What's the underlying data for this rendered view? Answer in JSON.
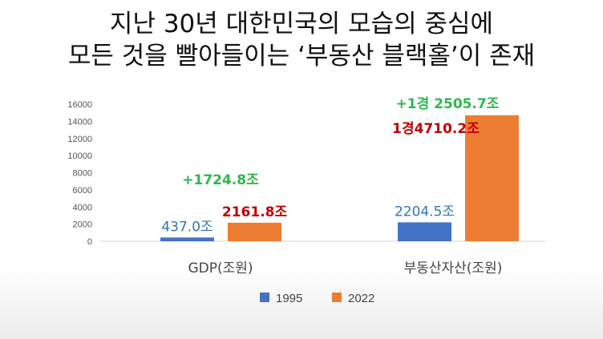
{
  "title": {
    "line1": "지난 30년 대한민국의 모습의 중심에",
    "line2": "모든 것을 빨아들이는 ‘부동산 블랙홀’이 존재"
  },
  "chart_data": {
    "type": "bar",
    "categories": [
      "GDP(조원)",
      "부동산자산(조원)"
    ],
    "series": [
      {
        "name": "1995",
        "values": [
          437.0,
          2204.5
        ],
        "color": "#4472c4",
        "labels": [
          "437.0조",
          "2204.5조"
        ]
      },
      {
        "name": "2022",
        "values": [
          2161.8,
          14710.2
        ],
        "color": "#ed7d31",
        "labels": [
          "2161.8조",
          "1경4710.2조"
        ]
      }
    ],
    "annotations": [
      "+1724.8조",
      "+1경 2505.7조"
    ],
    "yticks": [
      0,
      2000,
      4000,
      6000,
      8000,
      10000,
      12000,
      14000,
      16000
    ],
    "ylim": [
      0,
      16000
    ],
    "grid": false,
    "legend": "bottom"
  }
}
